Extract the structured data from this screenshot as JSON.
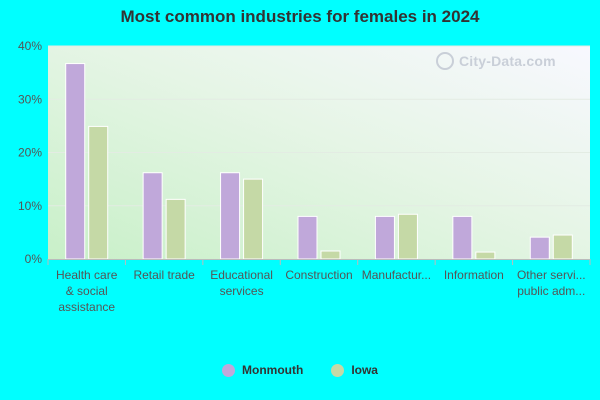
{
  "chart_data": {
    "type": "bar",
    "title": "Most common industries for females in 2024",
    "categories": [
      [
        "Health care",
        "& social",
        "assistance"
      ],
      [
        "Retail trade"
      ],
      [
        "Educational",
        "services"
      ],
      [
        "Construction"
      ],
      [
        "Manufactur..."
      ],
      [
        "Information"
      ],
      [
        "Other servi...",
        "public adm..."
      ]
    ],
    "series": [
      {
        "name": "Monmouth",
        "color": "#c0a8da",
        "values": [
          36.7,
          16.2,
          16.2,
          8.0,
          8.0,
          8.0,
          4.1
        ]
      },
      {
        "name": "Iowa",
        "color": "#c5d9a6",
        "values": [
          24.9,
          11.2,
          15.0,
          1.5,
          8.4,
          1.3,
          4.5
        ]
      }
    ],
    "ylim": [
      0,
      40
    ],
    "yticks": [
      "0%",
      "10%",
      "20%",
      "30%",
      "40%"
    ],
    "grid": true,
    "legend_position": "bottom-center"
  },
  "watermark": "City-Data.com"
}
